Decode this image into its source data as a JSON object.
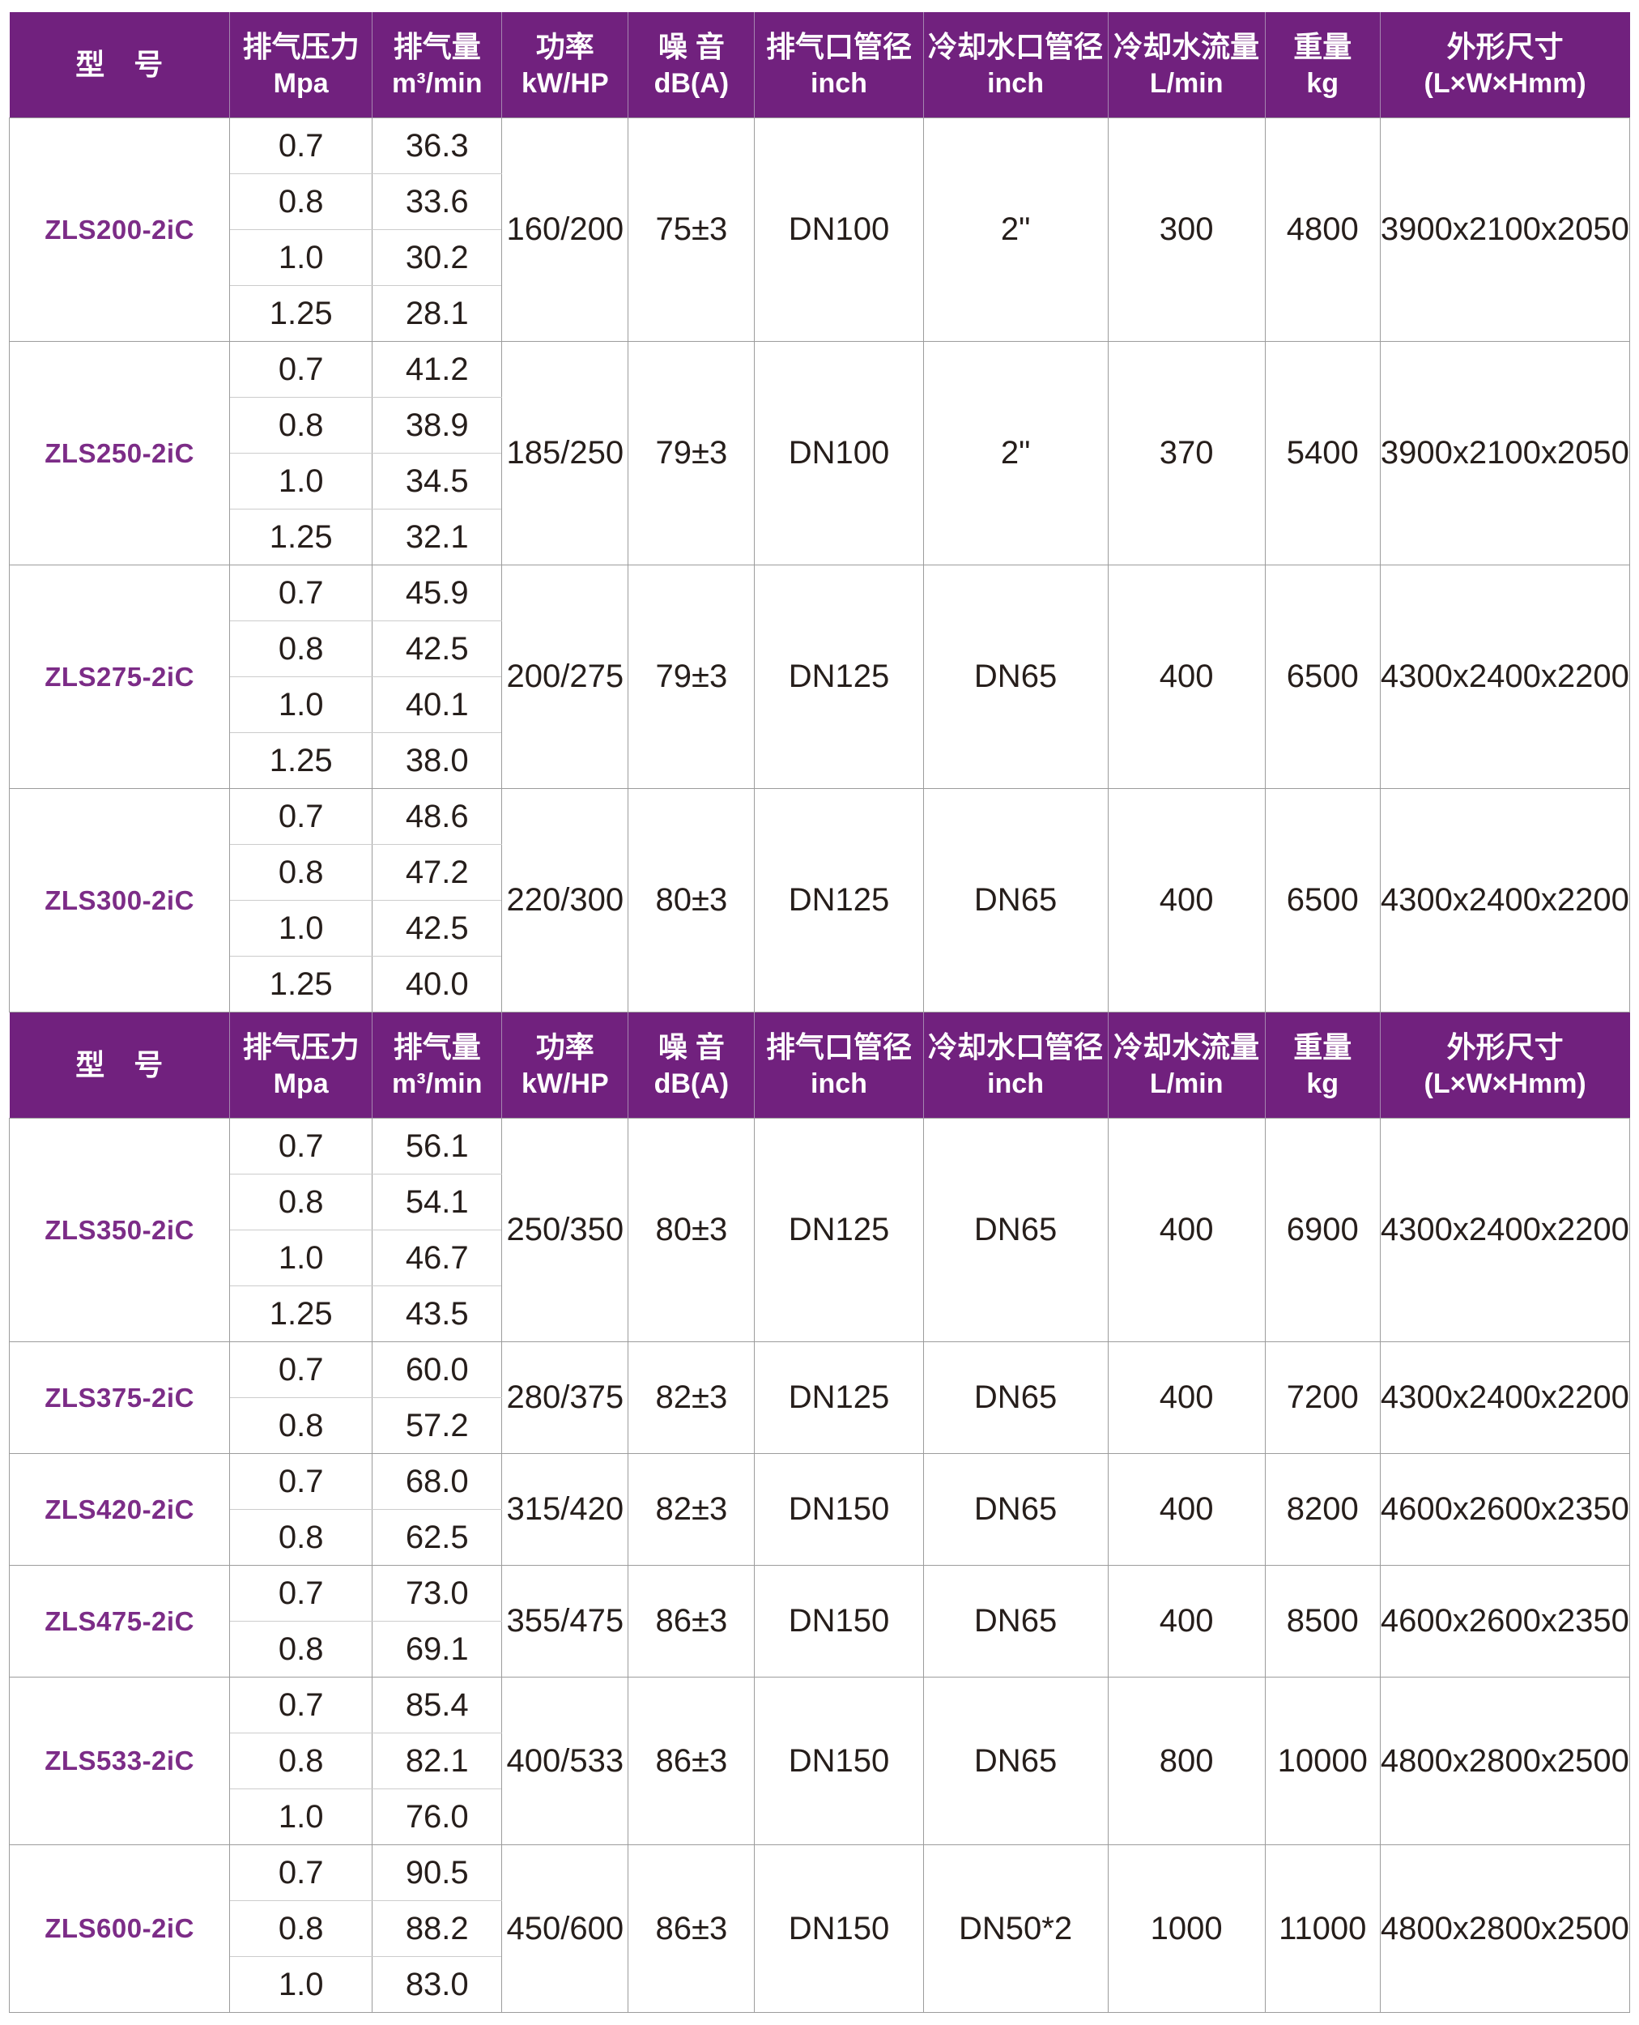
{
  "colors": {
    "header_bg": "#71217E",
    "header_divider": "#A585AF",
    "model_text": "#7C2C87",
    "data_text": "#261E1B",
    "border": "#9C9C9C",
    "border_light": "#CCCCCC"
  },
  "table": {
    "header_columns": [
      {
        "line1": "型　号",
        "line2": ""
      },
      {
        "line1": "排气压力",
        "line2": "Mpa"
      },
      {
        "line1": "排气量",
        "line2": "m³/min"
      },
      {
        "line1": "功率",
        "line2": "kW/HP"
      },
      {
        "line1": "噪 音",
        "line2": "dB(A)"
      },
      {
        "line1": "排气口管径",
        "line2": "inch"
      },
      {
        "line1": "冷却水口管径",
        "line2": "inch"
      },
      {
        "line1": "冷却水流量",
        "line2": "L/min"
      },
      {
        "line1": "重量",
        "line2": "kg"
      },
      {
        "line1": "外形尺寸",
        "line2": "(L×W×Hmm)"
      }
    ],
    "sections": [
      {
        "groups": [
          {
            "model": "ZLS200-2iC",
            "rows": [
              [
                "0.7",
                "36.3"
              ],
              [
                "0.8",
                "33.6"
              ],
              [
                "1.0",
                "30.2"
              ],
              [
                "1.25",
                "28.1"
              ]
            ],
            "power": "160/200",
            "noise": "75±3",
            "exhaust_port": "DN100",
            "cooling_port": "2\"",
            "cooling_flow": "300",
            "weight": "4800",
            "dimensions": "3900x2100x2050"
          },
          {
            "model": "ZLS250-2iC",
            "rows": [
              [
                "0.7",
                "41.2"
              ],
              [
                "0.8",
                "38.9"
              ],
              [
                "1.0",
                "34.5"
              ],
              [
                "1.25",
                "32.1"
              ]
            ],
            "power": "185/250",
            "noise": "79±3",
            "exhaust_port": "DN100",
            "cooling_port": "2\"",
            "cooling_flow": "370",
            "weight": "5400",
            "dimensions": "3900x2100x2050"
          },
          {
            "model": "ZLS275-2iC",
            "rows": [
              [
                "0.7",
                "45.9"
              ],
              [
                "0.8",
                "42.5"
              ],
              [
                "1.0",
                "40.1"
              ],
              [
                "1.25",
                "38.0"
              ]
            ],
            "power": "200/275",
            "noise": "79±3",
            "exhaust_port": "DN125",
            "cooling_port": "DN65",
            "cooling_flow": "400",
            "weight": "6500",
            "dimensions": "4300x2400x2200"
          },
          {
            "model": "ZLS300-2iC",
            "rows": [
              [
                "0.7",
                "48.6"
              ],
              [
                "0.8",
                "47.2"
              ],
              [
                "1.0",
                "42.5"
              ],
              [
                "1.25",
                "40.0"
              ]
            ],
            "power": "220/300",
            "noise": "80±3",
            "exhaust_port": "DN125",
            "cooling_port": "DN65",
            "cooling_flow": "400",
            "weight": "6500",
            "dimensions": "4300x2400x2200"
          }
        ]
      },
      {
        "groups": [
          {
            "model": "ZLS350-2iC",
            "rows": [
              [
                "0.7",
                "56.1"
              ],
              [
                "0.8",
                "54.1"
              ],
              [
                "1.0",
                "46.7"
              ],
              [
                "1.25",
                "43.5"
              ]
            ],
            "power": "250/350",
            "noise": "80±3",
            "exhaust_port": "DN125",
            "cooling_port": "DN65",
            "cooling_flow": "400",
            "weight": "6900",
            "dimensions": "4300x2400x2200"
          },
          {
            "model": "ZLS375-2iC",
            "rows": [
              [
                "0.7",
                "60.0"
              ],
              [
                "0.8",
                "57.2"
              ]
            ],
            "power": "280/375",
            "noise": "82±3",
            "exhaust_port": "DN125",
            "cooling_port": "DN65",
            "cooling_flow": "400",
            "weight": "7200",
            "dimensions": "4300x2400x2200"
          },
          {
            "model": "ZLS420-2iC",
            "rows": [
              [
                "0.7",
                "68.0"
              ],
              [
                "0.8",
                "62.5"
              ]
            ],
            "power": "315/420",
            "noise": "82±3",
            "exhaust_port": "DN150",
            "cooling_port": "DN65",
            "cooling_flow": "400",
            "weight": "8200",
            "dimensions": "4600x2600x2350"
          },
          {
            "model": "ZLS475-2iC",
            "rows": [
              [
                "0.7",
                "73.0"
              ],
              [
                "0.8",
                "69.1"
              ]
            ],
            "power": "355/475",
            "noise": "86±3",
            "exhaust_port": "DN150",
            "cooling_port": "DN65",
            "cooling_flow": "400",
            "weight": "8500",
            "dimensions": "4600x2600x2350"
          },
          {
            "model": "ZLS533-2iC",
            "rows": [
              [
                "0.7",
                "85.4"
              ],
              [
                "0.8",
                "82.1"
              ],
              [
                "1.0",
                "76.0"
              ]
            ],
            "power": "400/533",
            "noise": "86±3",
            "exhaust_port": "DN150",
            "cooling_port": "DN65",
            "cooling_flow": "800",
            "weight": "10000",
            "dimensions": "4800x2800x2500"
          },
          {
            "model": "ZLS600-2iC",
            "rows": [
              [
                "0.7",
                "90.5"
              ],
              [
                "0.8",
                "88.2"
              ],
              [
                "1.0",
                "83.0"
              ]
            ],
            "power": "450/600",
            "noise": "86±3",
            "exhaust_port": "DN150",
            "cooling_port": "DN50*2",
            "cooling_flow": "1000",
            "weight": "11000",
            "dimensions": "4800x2800x2500"
          }
        ]
      }
    ]
  }
}
